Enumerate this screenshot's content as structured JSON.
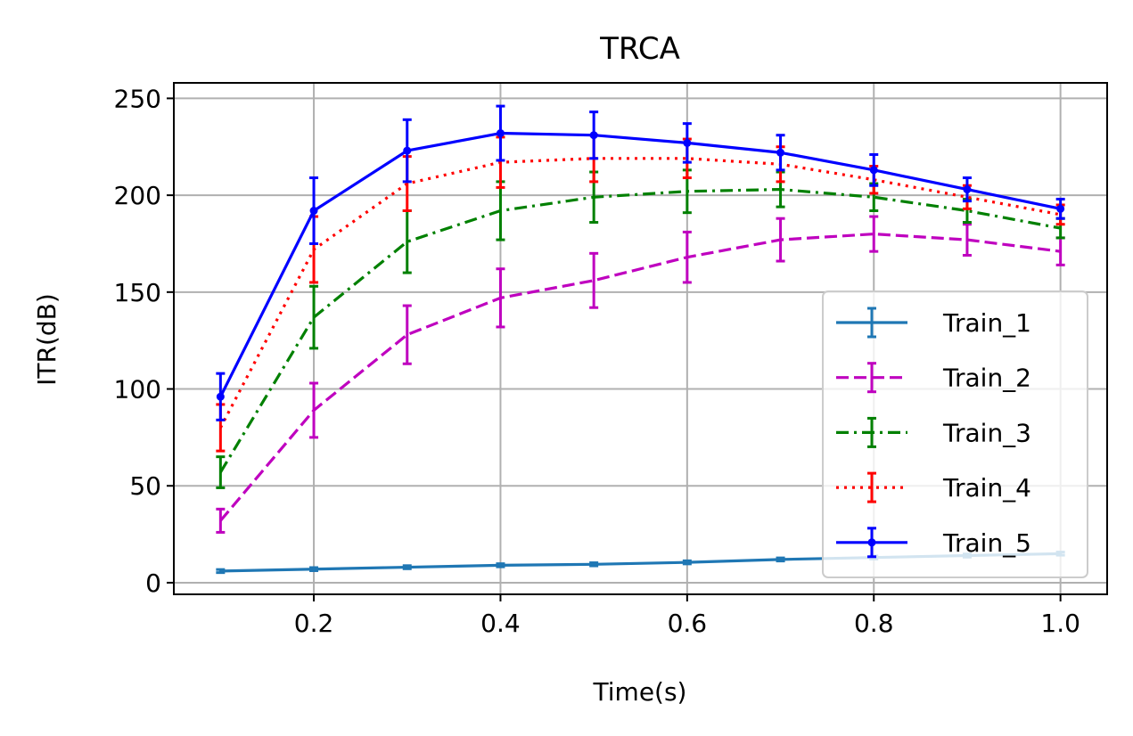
{
  "chart_data": {
    "type": "line",
    "title": "TRCA",
    "xlabel": "Time(s)",
    "ylabel": "ITR(dB)",
    "xlim": [
      0.05,
      1.05
    ],
    "ylim": [
      -6,
      258
    ],
    "xticks": [
      0.2,
      0.4,
      0.6,
      0.8,
      1.0
    ],
    "xtick_labels": [
      "0.2",
      "0.4",
      "0.6",
      "0.8",
      "1.0"
    ],
    "yticks": [
      0,
      50,
      100,
      150,
      200,
      250
    ],
    "ytick_labels": [
      "0",
      "50",
      "100",
      "150",
      "200",
      "250"
    ],
    "grid": true,
    "legend_position": "lower right",
    "x": [
      0.1,
      0.2,
      0.3,
      0.4,
      0.5,
      0.6,
      0.7,
      0.8,
      0.9,
      1.0
    ],
    "series": [
      {
        "name": "Train_1",
        "color": "#1f77b4",
        "linestyle": "solid",
        "marker": "none",
        "values": [
          6,
          7,
          8,
          9,
          9.5,
          10.5,
          12,
          13,
          14,
          15
        ],
        "errors": [
          0.8,
          0.8,
          0.8,
          0.8,
          0.8,
          0.8,
          0.8,
          0.8,
          0.8,
          0.8
        ]
      },
      {
        "name": "Train_2",
        "color": "#bf00bf",
        "linestyle": "dashed",
        "marker": "none",
        "values": [
          32,
          89,
          128,
          147,
          156,
          168,
          177,
          180,
          177,
          171
        ],
        "errors": [
          6,
          14,
          15,
          15,
          14,
          13,
          11,
          9,
          8,
          7
        ]
      },
      {
        "name": "Train_3",
        "color": "#008000",
        "linestyle": "dashdot",
        "marker": "none",
        "values": [
          57,
          137,
          176,
          192,
          199,
          202,
          203,
          199,
          192,
          183
        ],
        "errors": [
          8,
          16,
          16,
          15,
          13,
          11,
          9,
          7,
          6,
          5
        ]
      },
      {
        "name": "Train_4",
        "color": "#ff0000",
        "linestyle": "dotted",
        "marker": "none",
        "values": [
          80,
          172,
          206,
          217,
          219,
          219,
          216,
          208,
          199,
          190
        ],
        "errors": [
          12,
          17,
          14,
          13,
          12,
          10,
          9,
          7,
          6,
          5
        ]
      },
      {
        "name": "Train_5",
        "color": "#0000ff",
        "linestyle": "solid",
        "marker": "point",
        "values": [
          96,
          192,
          223,
          232,
          231,
          227,
          222,
          213,
          203,
          193
        ],
        "errors": [
          12,
          17,
          16,
          14,
          12,
          10,
          9,
          8,
          6,
          5
        ]
      }
    ]
  }
}
